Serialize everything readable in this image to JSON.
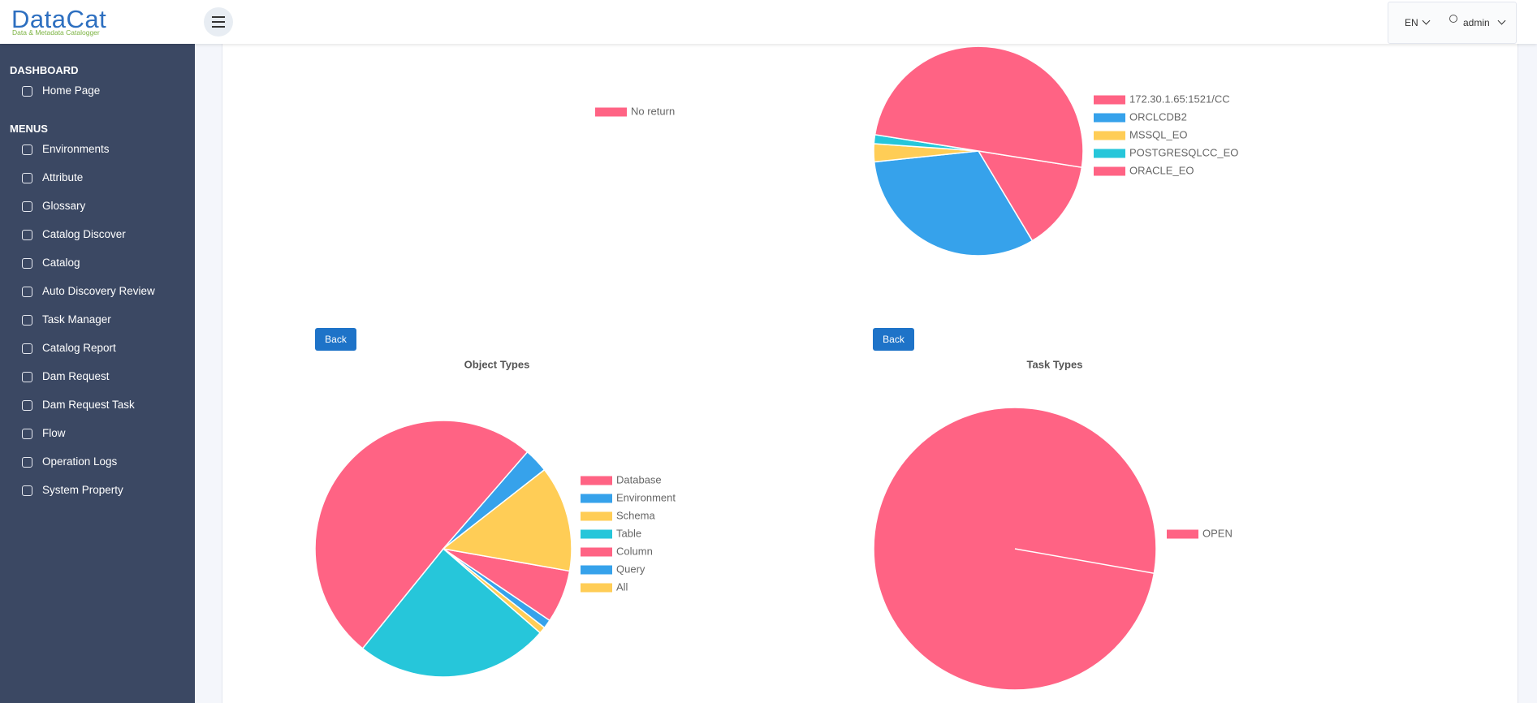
{
  "header": {
    "logo": "DataCat",
    "tagline": "Data & Metadata Catalogger",
    "language": "EN",
    "user": "admin"
  },
  "sidebar": {
    "sections": [
      {
        "title": "DASHBOARD",
        "items": [
          "Home Page"
        ]
      },
      {
        "title": "MENUS",
        "items": [
          "Environments",
          "Attribute",
          "Glossary",
          "Catalog Discover",
          "Catalog",
          "Auto Discovery Review",
          "Task Manager",
          "Catalog Report",
          "Dam Request",
          "Dam Request Task",
          "Flow",
          "Operation Logs",
          "System Property"
        ]
      }
    ]
  },
  "back_buttons": [
    "Back",
    "Back"
  ],
  "chart_data": [
    {
      "type": "pie",
      "categories": [
        "No return"
      ],
      "colors": [
        "#ff6384"
      ]
    },
    {
      "type": "pie",
      "categories": [
        "172.30.1.65:1521/CC",
        "ORCLCDB2",
        "MSSQL_EO",
        "POSTGRESQLCC_EO",
        "ORACLE_EO"
      ],
      "values": [
        10,
        23,
        2,
        1,
        36
      ],
      "colors": [
        "#ff6384",
        "#36a2eb",
        "#ffcd56",
        "#26c6da",
        "#ff6384"
      ]
    },
    {
      "type": "pie",
      "title": "Object Types",
      "categories": [
        "Database",
        "Environment",
        "Schema",
        "Table",
        "Column",
        "Query",
        "All"
      ],
      "values": [
        24,
        4,
        3,
        88,
        182,
        11,
        48
      ],
      "colors": [
        "#ff6384",
        "#36a2eb",
        "#ffcd56",
        "#26c6da",
        "#ff6384",
        "#36a2eb",
        "#ffcd56"
      ]
    },
    {
      "type": "pie",
      "title": "Task Types",
      "categories": [
        "OPEN"
      ],
      "values": [
        1
      ],
      "colors": [
        "#ff6384"
      ]
    }
  ]
}
